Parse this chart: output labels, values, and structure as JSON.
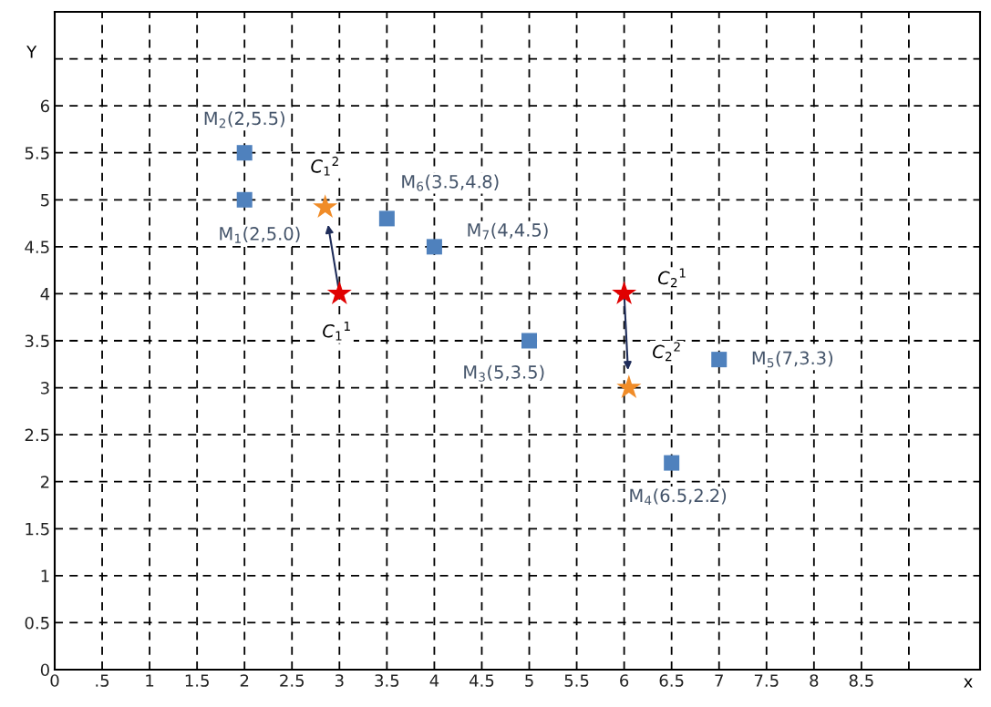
{
  "chart_data": {
    "type": "scatter",
    "xlabel": "x",
    "ylabel": "Y",
    "xlim": [
      0,
      9.75
    ],
    "ylim": [
      0,
      7
    ],
    "xticks": [
      0,
      {
        "value": 0.5,
        "label": ".5"
      },
      1,
      1.5,
      2,
      2.5,
      3,
      3.5,
      4,
      4.5,
      5,
      5.5,
      6,
      6.5,
      7,
      7.5,
      8,
      8.5,
      {
        "value": 9,
        "label": null
      }
    ],
    "yticks": [
      0,
      0.5,
      1,
      1.5,
      2,
      2.5,
      3,
      3.5,
      4,
      4.5,
      5,
      5.5,
      6,
      {
        "value": 6.5,
        "label": null
      }
    ],
    "grid": true,
    "series": [
      {
        "color": "#4f81bd",
        "marker": "square",
        "x": [
          2,
          2,
          5,
          6.5,
          7,
          3.5,
          4
        ],
        "values": [
          5.0,
          5.5,
          3.5,
          2.2,
          3.3,
          4.8,
          4.5
        ]
      },
      {
        "color": "#e00000",
        "marker": "star",
        "x": [
          3,
          6
        ],
        "values": [
          4,
          4
        ]
      },
      {
        "color": "#f08c28",
        "marker": "star",
        "x": [
          2.85,
          6.05
        ],
        "values": [
          4.92,
          3.0
        ]
      }
    ],
    "annotations": [
      {
        "text": "M$_{2}$(2,5.5)",
        "x": 2,
        "y": 5.5
      },
      {
        "text": "M$_{1}$(2,5.0)",
        "x": 2,
        "y": 5.0
      },
      {
        "text": "M$_{6}$(3.5,4.8)",
        "x": 3.5,
        "y": 4.8
      },
      {
        "text": "M$_{7}$(4,4.5)",
        "x": 4,
        "y": 4.5
      },
      {
        "text": "M$_{3}$(5,3.5)",
        "x": 5,
        "y": 3.5
      },
      {
        "text": "M$_{4}$(6.5,2.2)",
        "x": 6.5,
        "y": 2.2
      },
      {
        "text": "M$_{5}$(7,3.3)",
        "x": 7,
        "y": 3.3
      },
      {
        "text": "C$_{1}$$^{2}$",
        "x": 2.85,
        "y": 4.92
      },
      {
        "text": "C$_{1}$$^{1}$",
        "x": 3,
        "y": 4
      },
      {
        "text": "C$_{2}$$^{1}$",
        "x": 6,
        "y": 4
      },
      {
        "text": "C$_{2}$$^{2}$",
        "x": 6.05,
        "y": 3.0
      }
    ]
  }
}
